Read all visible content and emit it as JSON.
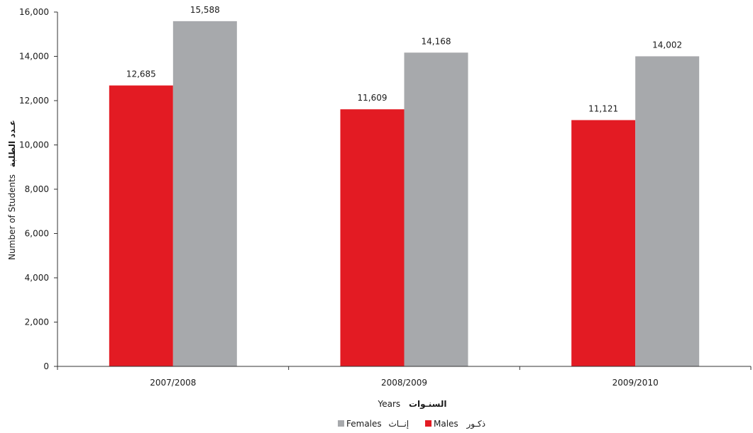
{
  "chart_data": {
    "type": "bar",
    "categories": [
      "2007/2008",
      "2008/2009",
      "2009/2010"
    ],
    "series": [
      {
        "name": "Males",
        "name_ar": "ذكـور",
        "color": "#e31b23",
        "values": [
          12685,
          11609,
          11121
        ]
      },
      {
        "name": "Females",
        "name_ar": "إنــاث",
        "color": "#a7a9ac",
        "values": [
          15588,
          14168,
          14002
        ]
      }
    ],
    "data_labels": [
      [
        "12,685",
        "11,609",
        "11,121"
      ],
      [
        "15,588",
        "14,168",
        "14,002"
      ]
    ],
    "ylim": [
      0,
      16000
    ],
    "yticks": [
      0,
      2000,
      4000,
      6000,
      8000,
      10000,
      12000,
      14000,
      16000
    ],
    "ytick_labels": [
      "0",
      "2,000",
      "4,000",
      "6,000",
      "8,000",
      "10,000",
      "12,000",
      "14,000",
      "16,000"
    ],
    "xlabel": "Years",
    "xlabel_ar": "السنـوات",
    "ylabel": "Number of Students",
    "ylabel_ar": "عـدد الطلبة",
    "grid": false,
    "legend_position": "bottom-center",
    "axis_color": "#333333"
  }
}
